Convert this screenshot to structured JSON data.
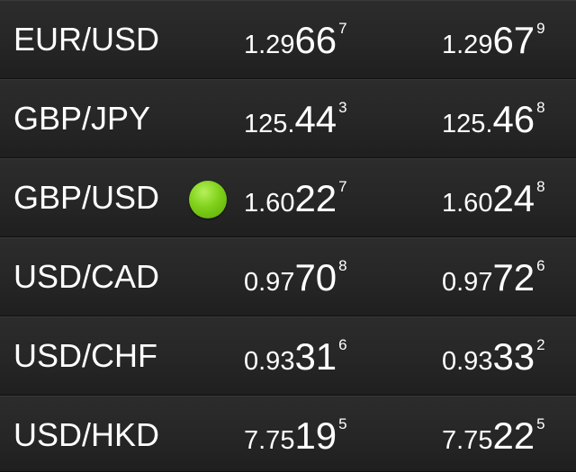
{
  "rates": [
    {
      "pair": "EUR/USD",
      "active": false,
      "bid": {
        "prefix": "1.29",
        "big": "66",
        "pip": "7"
      },
      "ask": {
        "prefix": "1.29",
        "big": "67",
        "pip": "9"
      }
    },
    {
      "pair": "GBP/JPY",
      "active": false,
      "bid": {
        "prefix": "125.",
        "big": "44",
        "pip": "3"
      },
      "ask": {
        "prefix": "125.",
        "big": "46",
        "pip": "8"
      }
    },
    {
      "pair": "GBP/USD",
      "active": true,
      "bid": {
        "prefix": "1.60",
        "big": "22",
        "pip": "7"
      },
      "ask": {
        "prefix": "1.60",
        "big": "24",
        "pip": "8"
      }
    },
    {
      "pair": "USD/CAD",
      "active": false,
      "bid": {
        "prefix": "0.97",
        "big": "70",
        "pip": "8"
      },
      "ask": {
        "prefix": "0.97",
        "big": "72",
        "pip": "6"
      }
    },
    {
      "pair": "USD/CHF",
      "active": false,
      "bid": {
        "prefix": "0.93",
        "big": "31",
        "pip": "6"
      },
      "ask": {
        "prefix": "0.93",
        "big": "33",
        "pip": "2"
      }
    },
    {
      "pair": "USD/HKD",
      "active": false,
      "bid": {
        "prefix": "7.75",
        "big": "19",
        "pip": "5"
      },
      "ask": {
        "prefix": "7.75",
        "big": "22",
        "pip": "5"
      }
    }
  ],
  "colors": {
    "background": "#202020",
    "text": "#ffffff",
    "active_indicator": "#7fd11a"
  },
  "icons": {
    "active_indicator": "green-dot-icon"
  }
}
